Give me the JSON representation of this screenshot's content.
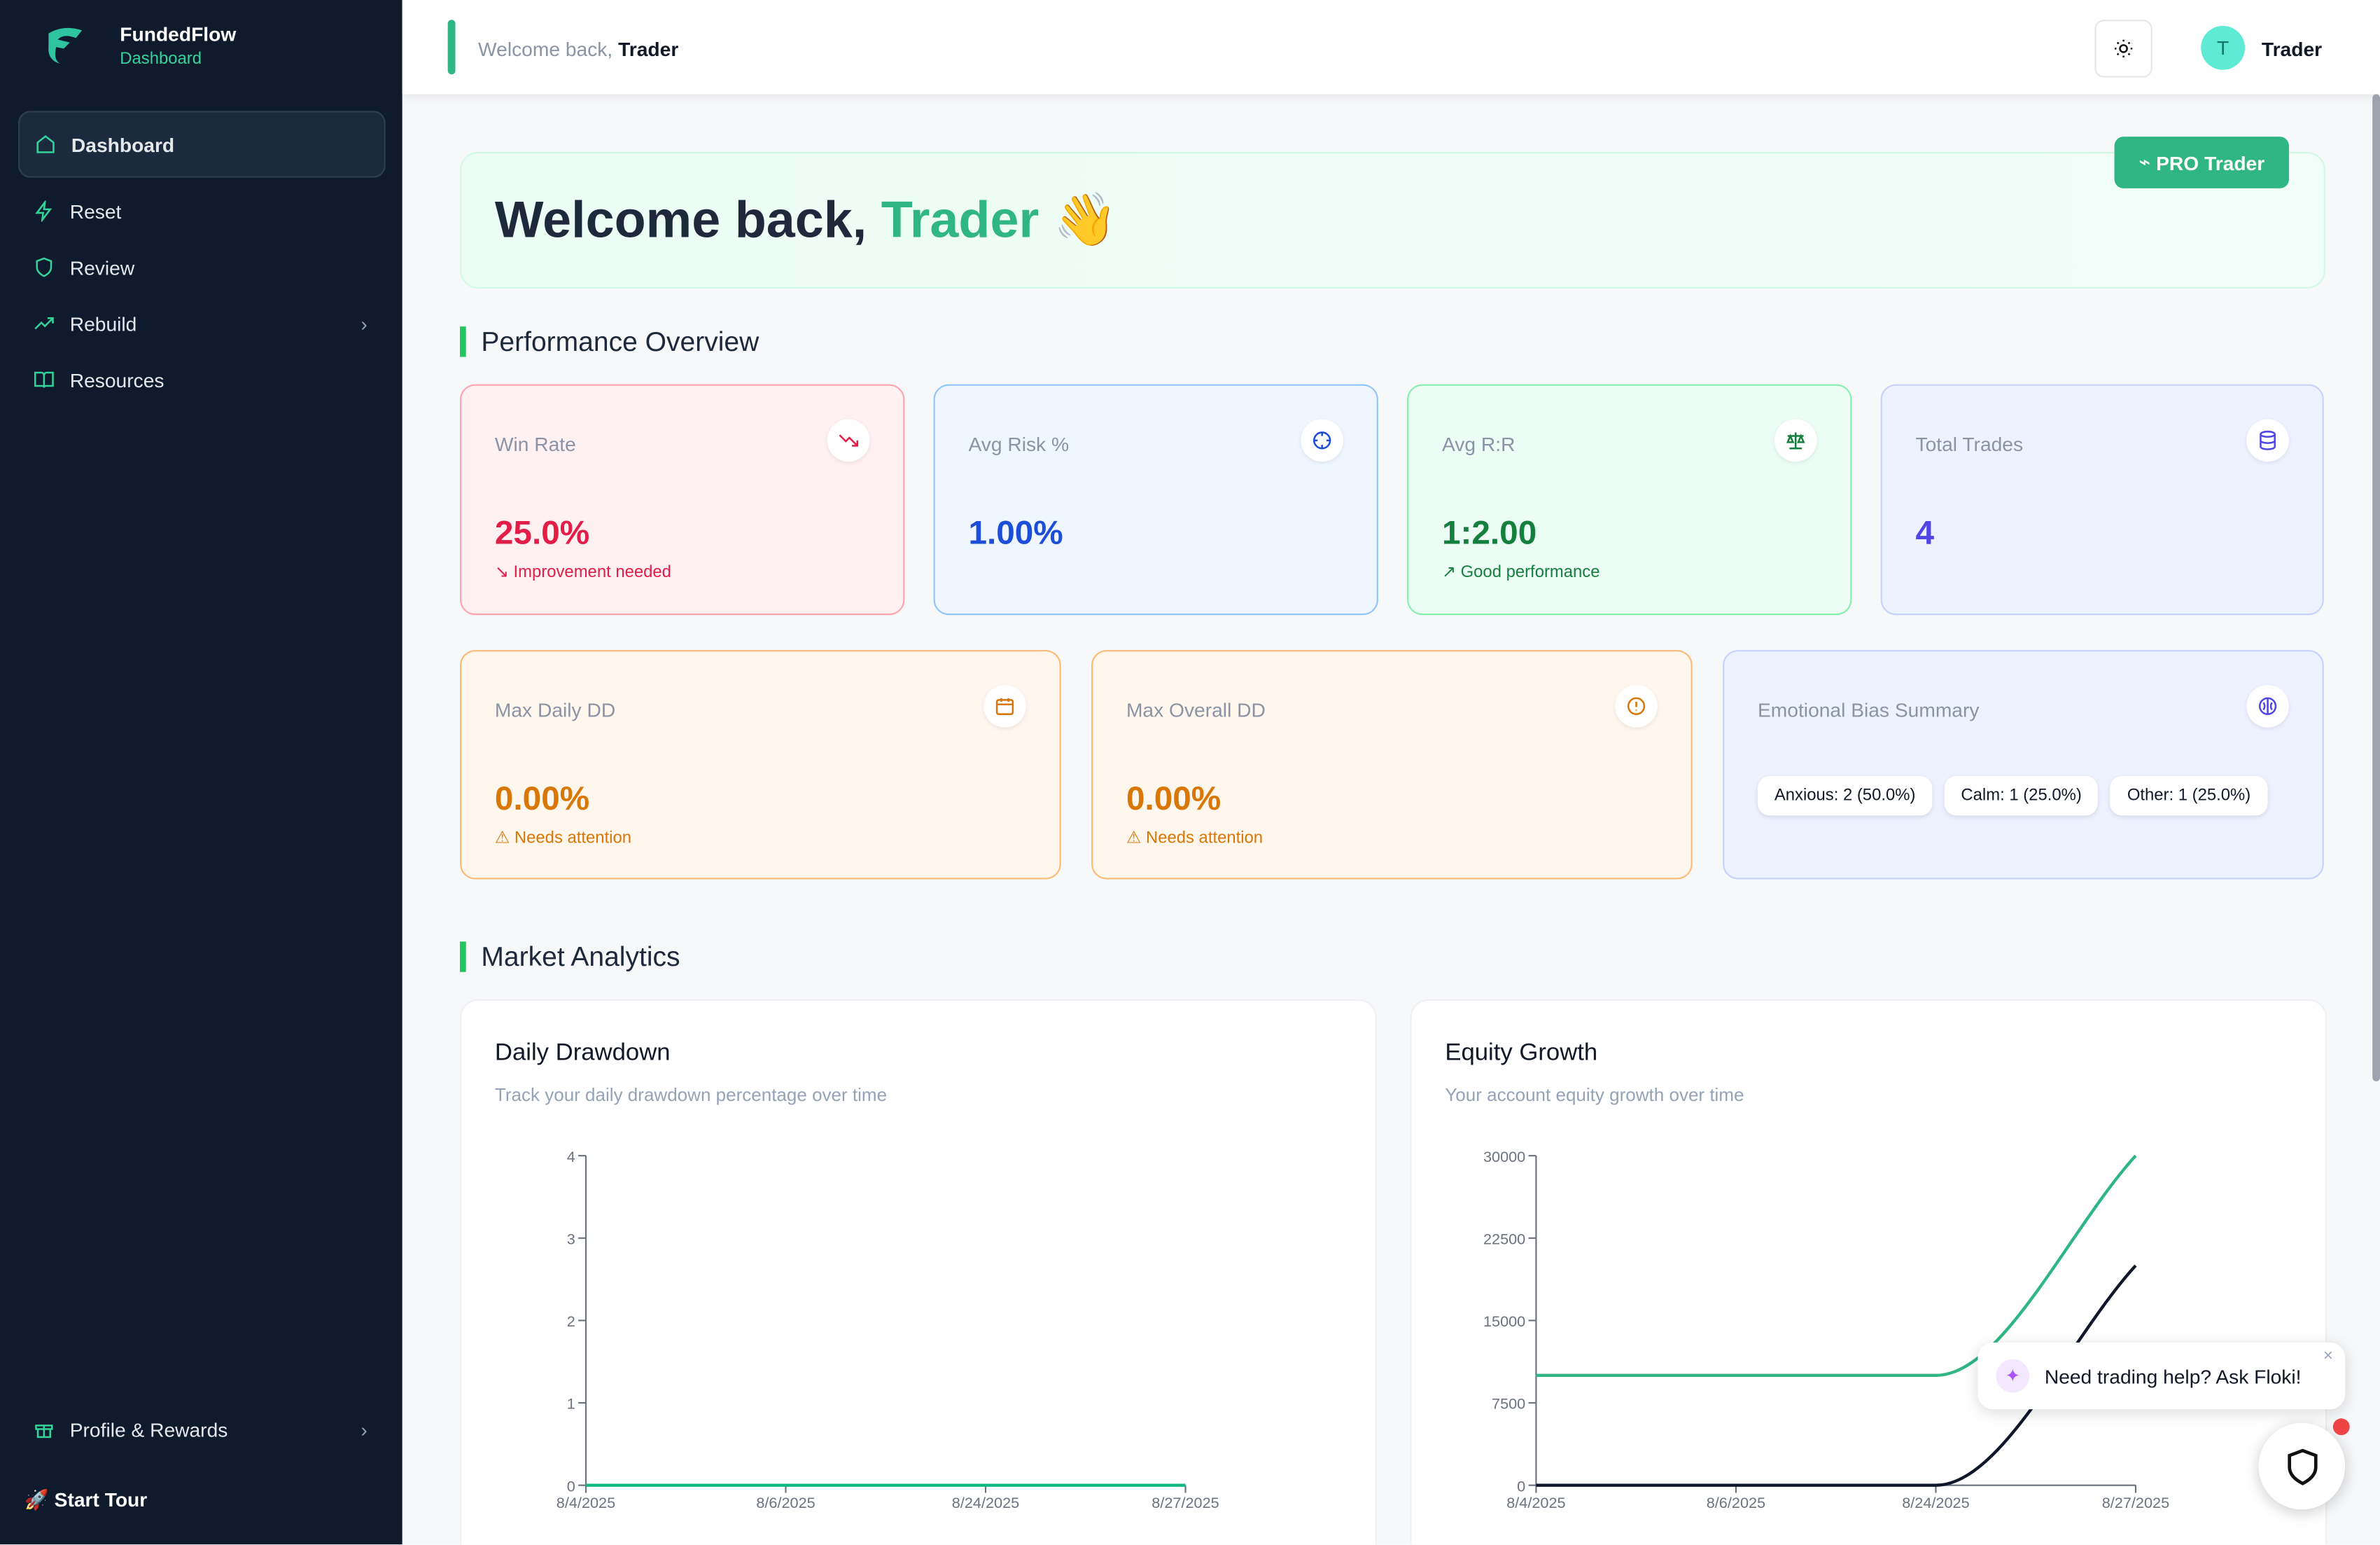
{
  "sidebar": {
    "brand": "FundedFlow",
    "brand_sub": "Dashboard",
    "nav": [
      "Dashboard",
      "Reset",
      "Review",
      "Rebuild",
      "Resources"
    ],
    "profile": "Profile & Rewards",
    "tour": "Start Tour"
  },
  "header": {
    "greeting": "Welcome back,",
    "name": "Trader",
    "avatar": "T",
    "user": "Trader"
  },
  "hero": {
    "greeting": "Welcome back,",
    "name": "Trader",
    "emoji": "👋",
    "badge": "PRO Trader"
  },
  "sections": [
    "Performance Overview",
    "Market Analytics"
  ],
  "cards": [
    {
      "label": "Win Rate",
      "value": "25.0%",
      "note": "Improvement needed"
    },
    {
      "label": "Avg Risk %",
      "value": "1.00%"
    },
    {
      "label": "Avg R:R",
      "value": "1:2.00",
      "note": "Good performance"
    },
    {
      "label": "Total Trades",
      "value": "4"
    },
    {
      "label": "Max Daily DD",
      "value": "0.00%",
      "note": "Needs attention"
    },
    {
      "label": "Max Overall DD",
      "value": "0.00%",
      "note": "Needs attention"
    }
  ],
  "bias": {
    "label": "Emotional Bias Summary",
    "chips": [
      "Anxious: 2 (50.0%)",
      "Calm: 1 (25.0%)",
      "Other: 1 (25.0%)"
    ]
  },
  "charts": [
    {
      "type": "line",
      "title": "Daily Drawdown",
      "subtitle": "Track your daily drawdown percentage over time",
      "categories": [
        "8/4/2025",
        "8/6/2025",
        "8/24/2025",
        "8/27/2025"
      ],
      "series": [
        {
          "color": "#10b981",
          "values": [
            0,
            0,
            0,
            0
          ]
        }
      ],
      "ylim": [
        0,
        4
      ],
      "yticks": [
        0,
        1,
        2,
        3,
        4
      ]
    },
    {
      "type": "line",
      "title": "Equity Growth",
      "subtitle": "Your account equity growth over time",
      "categories": [
        "8/4/2025",
        "8/6/2025",
        "8/24/2025",
        "8/27/2025"
      ],
      "series": [
        {
          "color": "#2fb684",
          "values": [
            10000,
            10000,
            10000,
            30000
          ]
        },
        {
          "color": "#0f172a",
          "values": [
            0,
            0,
            0,
            20000
          ]
        }
      ],
      "ylim": [
        0,
        30000
      ],
      "yticks": [
        0,
        7500,
        15000,
        22500,
        30000
      ]
    }
  ],
  "chat": {
    "text": "Need trading help? Ask Floki!"
  }
}
